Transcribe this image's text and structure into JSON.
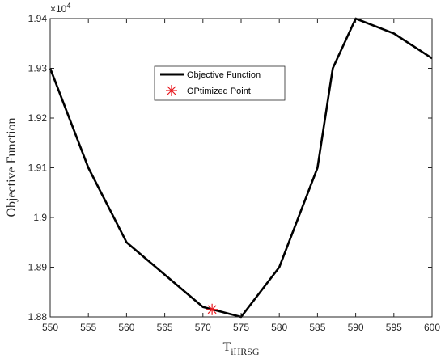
{
  "chart_data": {
    "type": "line",
    "xlabel": "T",
    "xlabel_sub": "iHRSG",
    "ylabel": "Objective Function",
    "exponent_label": "×10",
    "exponent_power": "4",
    "xlim": [
      550,
      600
    ],
    "ylim": [
      1.88,
      1.94
    ],
    "xticks": [
      550,
      555,
      560,
      565,
      570,
      575,
      580,
      585,
      590,
      595,
      600
    ],
    "yticks": [
      1.88,
      1.89,
      1.9,
      1.91,
      1.92,
      1.93,
      1.94
    ],
    "ytick_labels": [
      "1.88",
      "1.89",
      "1.9",
      "1.91",
      "1.92",
      "1.93",
      "1.94"
    ],
    "series": [
      {
        "name": "Objective Function",
        "color": "#000000",
        "x": [
          550,
          555,
          560,
          565,
          570,
          575,
          580,
          585,
          587,
          590,
          595,
          600
        ],
        "y": [
          1.93,
          1.91,
          1.895,
          1.8885,
          1.882,
          1.88,
          1.89,
          1.91,
          1.93,
          1.94,
          1.937,
          1.932
        ]
      }
    ],
    "optimized_point": {
      "name": "OPtimized Point",
      "color": "#e8191f",
      "x": 571.2,
      "y": 1.8815
    },
    "legend_position": "upper-center",
    "grid": false
  }
}
